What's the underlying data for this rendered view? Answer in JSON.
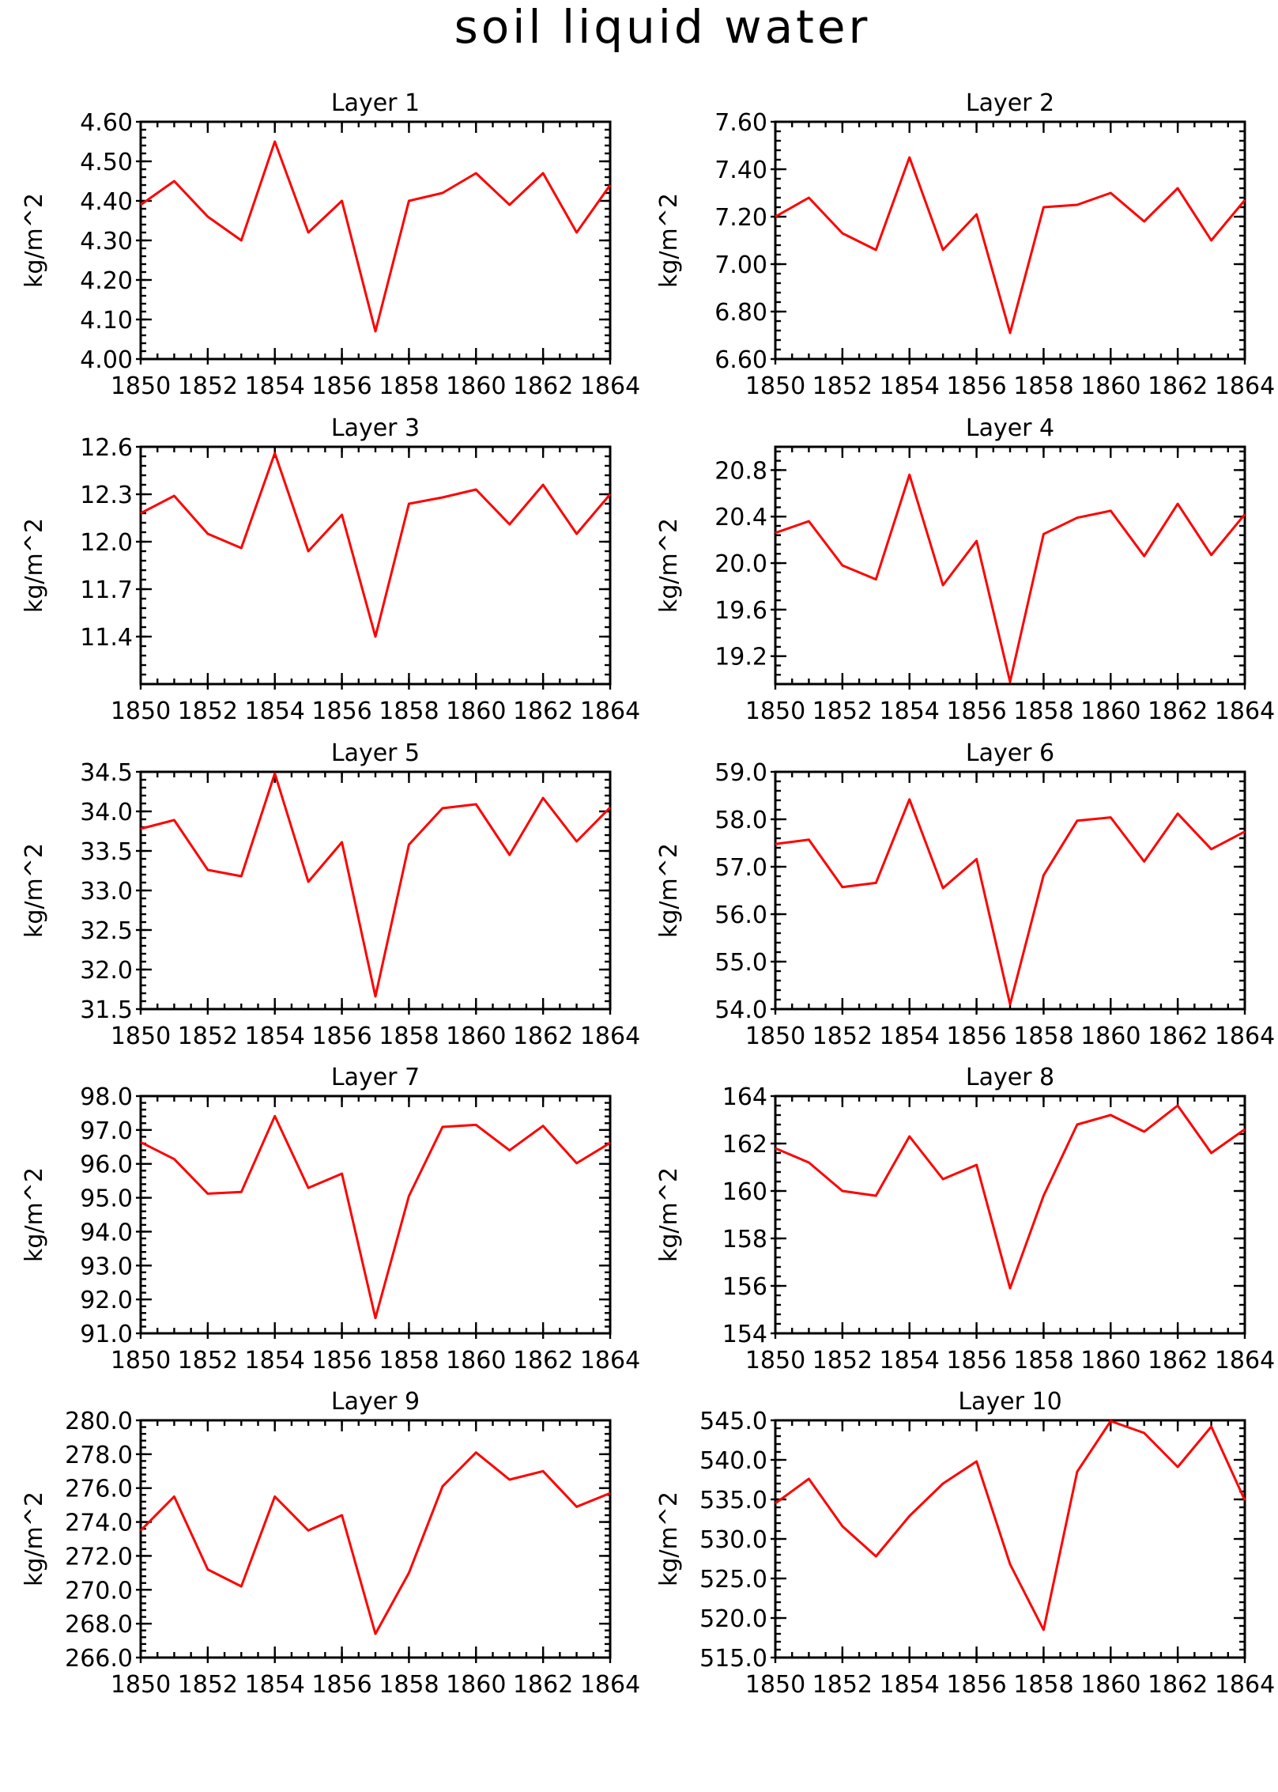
{
  "figure": {
    "title": "soil liquid water"
  },
  "chart_data": [
    {
      "type": "line",
      "title": "Layer 1",
      "ylabel": "kg/m^2",
      "xlim": [
        1850,
        1864
      ],
      "ylim": [
        4.0,
        4.6
      ],
      "yticks": [
        4.0,
        4.1,
        4.2,
        4.3,
        4.4,
        4.5,
        4.6
      ],
      "ytick_labels": [
        "4.00",
        "4.10",
        "4.20",
        "4.30",
        "4.40",
        "4.50",
        "4.60"
      ],
      "xticks": [
        1850,
        1852,
        1854,
        1856,
        1858,
        1860,
        1862,
        1864
      ],
      "xtick_labels": [
        "1850",
        "1852",
        "1854",
        "1856",
        "1858",
        "1860",
        "1862",
        "1864"
      ],
      "x": [
        1850,
        1851,
        1852,
        1853,
        1854,
        1855,
        1856,
        1857,
        1858,
        1859,
        1860,
        1861,
        1862,
        1863,
        1864
      ],
      "values": [
        4.39,
        4.45,
        4.36,
        4.3,
        4.55,
        4.32,
        4.4,
        4.07,
        4.4,
        4.42,
        4.47,
        4.39,
        4.47,
        4.32,
        4.44
      ]
    },
    {
      "type": "line",
      "title": "Layer 2",
      "ylabel": "kg/m^2",
      "xlim": [
        1850,
        1864
      ],
      "ylim": [
        6.6,
        7.6
      ],
      "yticks": [
        6.6,
        6.8,
        7.0,
        7.2,
        7.4,
        7.6
      ],
      "ytick_labels": [
        "6.60",
        "6.80",
        "7.00",
        "7.20",
        "7.40",
        "7.60"
      ],
      "xticks": [
        1850,
        1852,
        1854,
        1856,
        1858,
        1860,
        1862,
        1864
      ],
      "xtick_labels": [
        "1850",
        "1852",
        "1854",
        "1856",
        "1858",
        "1860",
        "1862",
        "1864"
      ],
      "x": [
        1850,
        1851,
        1852,
        1853,
        1854,
        1855,
        1856,
        1857,
        1858,
        1859,
        1860,
        1861,
        1862,
        1863,
        1864
      ],
      "values": [
        7.2,
        7.28,
        7.13,
        7.06,
        7.45,
        7.06,
        7.21,
        6.71,
        7.24,
        7.25,
        7.3,
        7.18,
        7.32,
        7.1,
        7.27
      ]
    },
    {
      "type": "line",
      "title": "Layer 3",
      "ylabel": "kg/m^2",
      "xlim": [
        1850,
        1864
      ],
      "ylim": [
        11.1,
        12.6
      ],
      "yticks": [
        11.4,
        11.7,
        12.0,
        12.3,
        12.6
      ],
      "ytick_labels": [
        "11.4",
        "11.7",
        "12.0",
        "12.3",
        "12.6"
      ],
      "xticks": [
        1850,
        1852,
        1854,
        1856,
        1858,
        1860,
        1862,
        1864
      ],
      "xtick_labels": [
        "1850",
        "1852",
        "1854",
        "1856",
        "1858",
        "1860",
        "1862",
        "1864"
      ],
      "x": [
        1850,
        1851,
        1852,
        1853,
        1854,
        1855,
        1856,
        1857,
        1858,
        1859,
        1860,
        1861,
        1862,
        1863,
        1864
      ],
      "values": [
        12.18,
        12.29,
        12.05,
        11.96,
        12.56,
        11.94,
        12.17,
        11.4,
        12.24,
        12.28,
        12.33,
        12.11,
        12.36,
        12.05,
        12.3
      ]
    },
    {
      "type": "line",
      "title": "Layer 4",
      "ylabel": "kg/m^2",
      "xlim": [
        1850,
        1864
      ],
      "ylim": [
        18.96,
        21.0
      ],
      "yticks": [
        19.2,
        19.6,
        20.0,
        20.4,
        20.8
      ],
      "ytick_labels": [
        "19.2",
        "19.6",
        "20.0",
        "20.4",
        "20.8"
      ],
      "xticks": [
        1850,
        1852,
        1854,
        1856,
        1858,
        1860,
        1862,
        1864
      ],
      "xtick_labels": [
        "1850",
        "1852",
        "1854",
        "1856",
        "1858",
        "1860",
        "1862",
        "1864"
      ],
      "x": [
        1850,
        1851,
        1852,
        1853,
        1854,
        1855,
        1856,
        1857,
        1858,
        1859,
        1860,
        1861,
        1862,
        1863,
        1864
      ],
      "values": [
        20.26,
        20.36,
        19.98,
        19.86,
        20.76,
        19.81,
        20.19,
        18.98,
        20.25,
        20.39,
        20.45,
        20.06,
        20.51,
        20.07,
        20.42
      ]
    },
    {
      "type": "line",
      "title": "Layer 5",
      "ylabel": "kg/m^2",
      "xlim": [
        1850,
        1864
      ],
      "ylim": [
        31.5,
        34.5
      ],
      "yticks": [
        31.5,
        32.0,
        32.5,
        33.0,
        33.5,
        34.0,
        34.5
      ],
      "ytick_labels": [
        "31.5",
        "32.0",
        "32.5",
        "33.0",
        "33.5",
        "34.0",
        "34.5"
      ],
      "xticks": [
        1850,
        1852,
        1854,
        1856,
        1858,
        1860,
        1862,
        1864
      ],
      "xtick_labels": [
        "1850",
        "1852",
        "1854",
        "1856",
        "1858",
        "1860",
        "1862",
        "1864"
      ],
      "x": [
        1850,
        1851,
        1852,
        1853,
        1854,
        1855,
        1856,
        1857,
        1858,
        1859,
        1860,
        1861,
        1862,
        1863,
        1864
      ],
      "values": [
        33.78,
        33.89,
        33.26,
        33.18,
        34.48,
        33.11,
        33.61,
        31.66,
        33.58,
        34.04,
        34.09,
        33.45,
        34.17,
        33.62,
        34.05
      ]
    },
    {
      "type": "line",
      "title": "Layer 6",
      "ylabel": "kg/m^2",
      "xlim": [
        1850,
        1864
      ],
      "ylim": [
        54.0,
        59.0
      ],
      "yticks": [
        54.0,
        55.0,
        56.0,
        57.0,
        58.0,
        59.0
      ],
      "ytick_labels": [
        "54.0",
        "55.0",
        "56.0",
        "57.0",
        "58.0",
        "59.0"
      ],
      "xticks": [
        1850,
        1852,
        1854,
        1856,
        1858,
        1860,
        1862,
        1864
      ],
      "xtick_labels": [
        "1850",
        "1852",
        "1854",
        "1856",
        "1858",
        "1860",
        "1862",
        "1864"
      ],
      "x": [
        1850,
        1851,
        1852,
        1853,
        1854,
        1855,
        1856,
        1857,
        1858,
        1859,
        1860,
        1861,
        1862,
        1863,
        1864
      ],
      "values": [
        57.48,
        57.57,
        56.57,
        56.66,
        58.42,
        56.55,
        57.16,
        54.1,
        56.82,
        57.97,
        58.04,
        57.11,
        58.12,
        57.37,
        57.74
      ]
    },
    {
      "type": "line",
      "title": "Layer 7",
      "ylabel": "kg/m^2",
      "xlim": [
        1850,
        1864
      ],
      "ylim": [
        91.0,
        98.0
      ],
      "yticks": [
        91.0,
        92.0,
        93.0,
        94.0,
        95.0,
        96.0,
        97.0,
        98.0
      ],
      "ytick_labels": [
        "91.0",
        "92.0",
        "93.0",
        "94.0",
        "95.0",
        "96.0",
        "97.0",
        "98.0"
      ],
      "xticks": [
        1850,
        1852,
        1854,
        1856,
        1858,
        1860,
        1862,
        1864
      ],
      "xtick_labels": [
        "1850",
        "1852",
        "1854",
        "1856",
        "1858",
        "1860",
        "1862",
        "1864"
      ],
      "x": [
        1850,
        1851,
        1852,
        1853,
        1854,
        1855,
        1856,
        1857,
        1858,
        1859,
        1860,
        1861,
        1862,
        1863,
        1864
      ],
      "values": [
        96.64,
        96.14,
        95.12,
        95.17,
        97.41,
        95.29,
        95.71,
        91.45,
        95.05,
        97.09,
        97.15,
        96.4,
        97.12,
        96.02,
        96.62
      ]
    },
    {
      "type": "line",
      "title": "Layer 8",
      "ylabel": "kg/m^2",
      "xlim": [
        1850,
        1864
      ],
      "ylim": [
        154,
        164
      ],
      "yticks": [
        154,
        156,
        158,
        160,
        162,
        164
      ],
      "ytick_labels": [
        "154",
        "156",
        "158",
        "160",
        "162",
        "164"
      ],
      "xticks": [
        1850,
        1852,
        1854,
        1856,
        1858,
        1860,
        1862,
        1864
      ],
      "xtick_labels": [
        "1850",
        "1852",
        "1854",
        "1856",
        "1858",
        "1860",
        "1862",
        "1864"
      ],
      "x": [
        1850,
        1851,
        1852,
        1853,
        1854,
        1855,
        1856,
        1857,
        1858,
        1859,
        1860,
        1861,
        1862,
        1863,
        1864
      ],
      "values": [
        161.8,
        161.2,
        160.0,
        159.8,
        162.3,
        160.5,
        161.1,
        155.9,
        159.8,
        162.8,
        163.2,
        162.5,
        163.6,
        161.6,
        162.6
      ]
    },
    {
      "type": "line",
      "title": "Layer 9",
      "ylabel": "kg/m^2",
      "xlim": [
        1850,
        1864
      ],
      "ylim": [
        266.0,
        280.0
      ],
      "yticks": [
        266.0,
        268.0,
        270.0,
        272.0,
        274.0,
        276.0,
        278.0,
        280.0
      ],
      "ytick_labels": [
        "266.0",
        "268.0",
        "270.0",
        "272.0",
        "274.0",
        "276.0",
        "278.0",
        "280.0"
      ],
      "xticks": [
        1850,
        1852,
        1854,
        1856,
        1858,
        1860,
        1862,
        1864
      ],
      "xtick_labels": [
        "1850",
        "1852",
        "1854",
        "1856",
        "1858",
        "1860",
        "1862",
        "1864"
      ],
      "x": [
        1850,
        1851,
        1852,
        1853,
        1854,
        1855,
        1856,
        1857,
        1858,
        1859,
        1860,
        1861,
        1862,
        1863,
        1864
      ],
      "values": [
        273.5,
        275.5,
        271.2,
        270.2,
        275.5,
        273.5,
        274.4,
        267.4,
        271.0,
        276.1,
        278.1,
        276.5,
        277.0,
        274.9,
        275.7
      ]
    },
    {
      "type": "line",
      "title": "Layer 10",
      "ylabel": "kg/m^2",
      "xlim": [
        1850,
        1864
      ],
      "ylim": [
        515.0,
        545.0
      ],
      "yticks": [
        515.0,
        520.0,
        525.0,
        530.0,
        535.0,
        540.0,
        545.0
      ],
      "ytick_labels": [
        "515.0",
        "520.0",
        "525.0",
        "530.0",
        "535.0",
        "540.0",
        "545.0"
      ],
      "xticks": [
        1850,
        1852,
        1854,
        1856,
        1858,
        1860,
        1862,
        1864
      ],
      "xtick_labels": [
        "1850",
        "1852",
        "1854",
        "1856",
        "1858",
        "1860",
        "1862",
        "1864"
      ],
      "x": [
        1850,
        1851,
        1852,
        1853,
        1854,
        1855,
        1856,
        1857,
        1858,
        1859,
        1860,
        1861,
        1862,
        1863,
        1864
      ],
      "values": [
        534.5,
        537.6,
        531.6,
        527.8,
        532.9,
        537.0,
        539.8,
        526.8,
        518.5,
        538.5,
        544.9,
        543.4,
        539.1,
        544.2,
        534.9
      ]
    }
  ],
  "colors": {
    "series": "#ff0000",
    "axes": "#000000",
    "background": "#ffffff"
  }
}
